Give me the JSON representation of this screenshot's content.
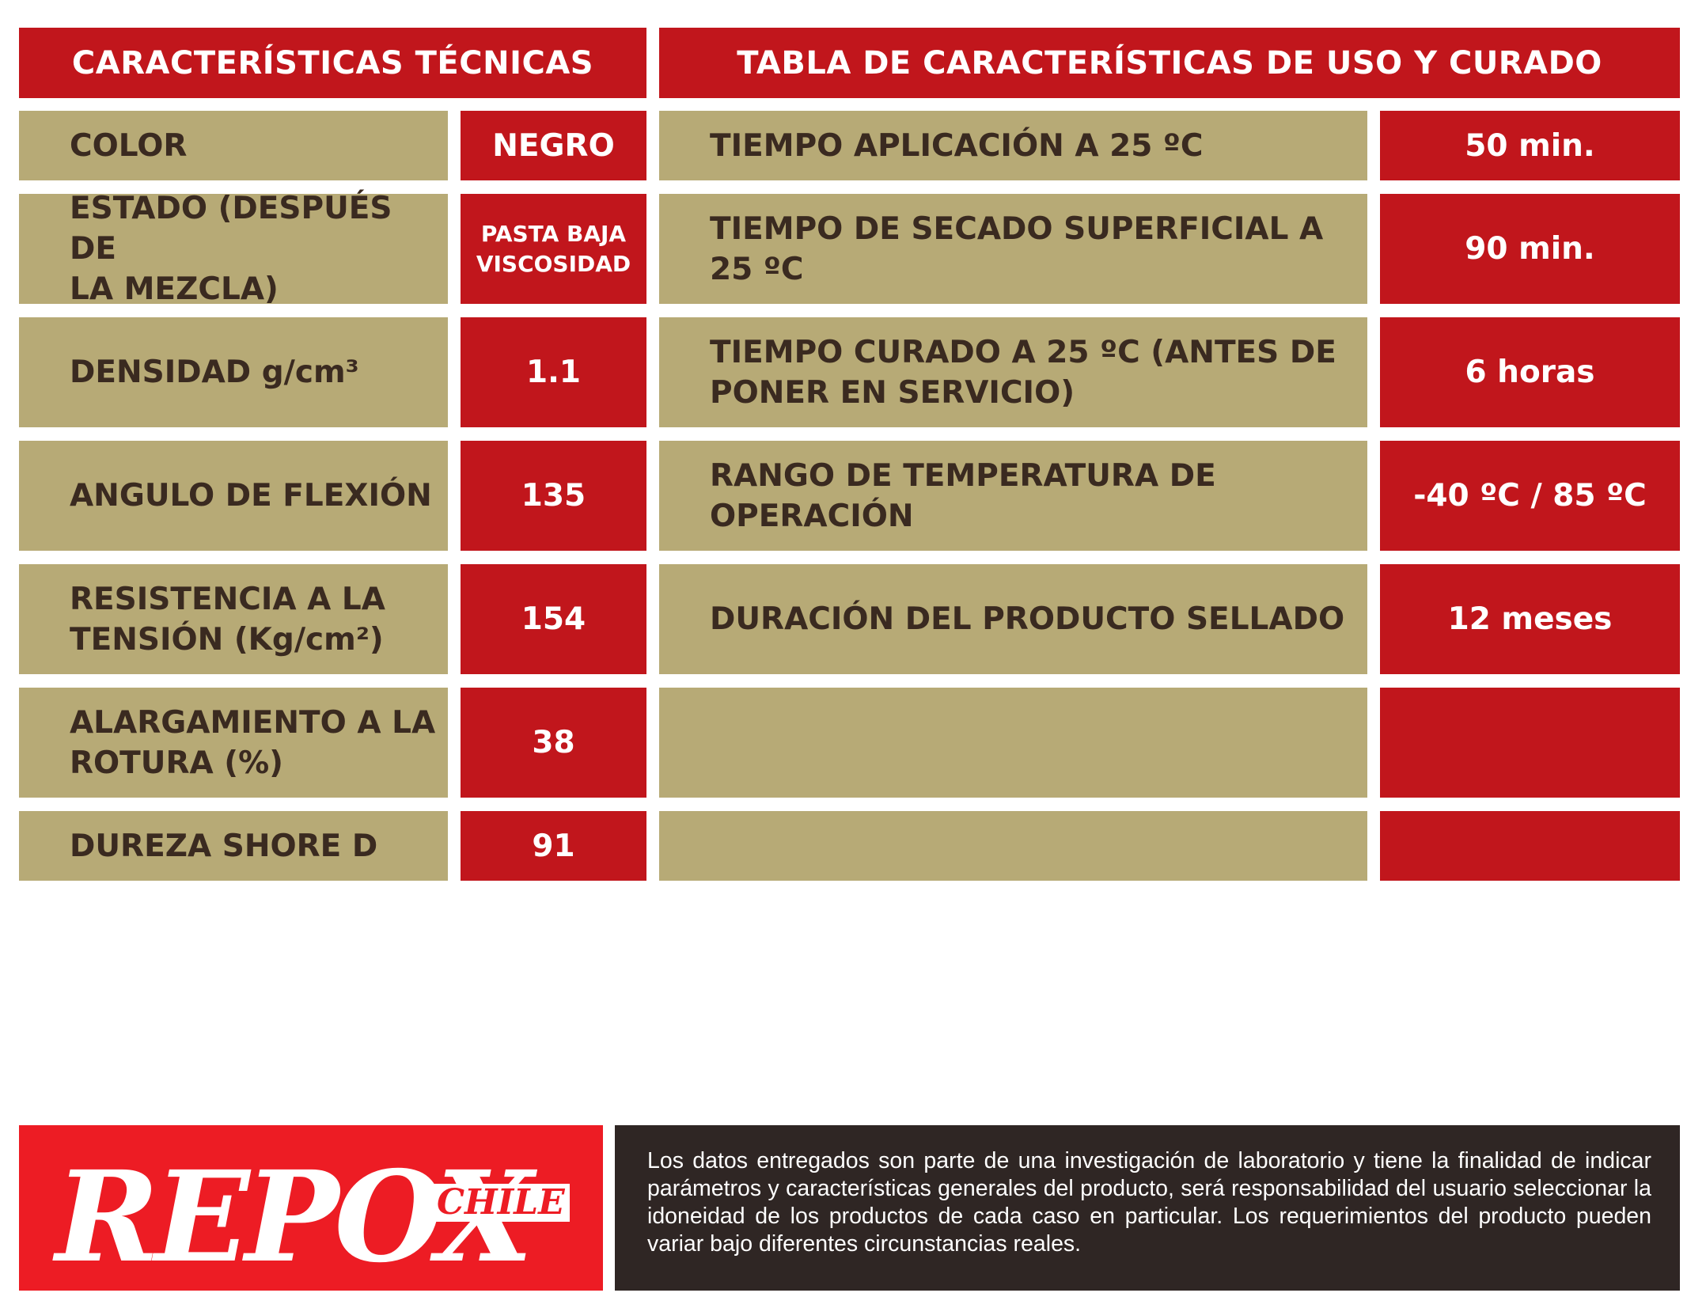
{
  "left": {
    "header": "CARACTERÍSTICAS TÉCNICAS",
    "rows": [
      {
        "label": "COLOR",
        "value": "NEGRO"
      },
      {
        "label": "ESTADO (DESPUÉS DE\nLA MEZCLA)",
        "value": "PASTA BAJA\nVISCOSIDAD"
      },
      {
        "label": "DENSIDAD g/cm³",
        "value": "1.1"
      },
      {
        "label": "ANGULO DE FLEXIÓN",
        "value": "135"
      },
      {
        "label": "RESISTENCIA A LA\nTENSIÓN (Kg/cm²)",
        "value": "154"
      },
      {
        "label": "ALARGAMIENTO A LA\nROTURA (%)",
        "value": "38"
      },
      {
        "label": "DUREZA SHORE D",
        "value": "91"
      }
    ]
  },
  "right": {
    "header": "TABLA DE CARACTERÍSTICAS DE USO Y CURADO",
    "rows": [
      {
        "label": "TIEMPO APLICACIÓN A 25 ºC",
        "value": "50 min."
      },
      {
        "label": "TIEMPO DE SECADO SUPERFICIAL A\n25 ºC",
        "value": "90 min."
      },
      {
        "label": "TIEMPO CURADO A 25 ºC (ANTES DE\nPONER EN SERVICIO)",
        "value": "6 horas"
      },
      {
        "label": "RANGO DE TEMPERATURA DE\nOPERACIÓN",
        "value": "-40 ºC / 85 ºC"
      },
      {
        "label": "DURACIÓN DEL PRODUCTO SELLADO",
        "value": "12 meses"
      },
      {
        "label": "",
        "value": ""
      },
      {
        "label": "",
        "value": ""
      }
    ]
  },
  "logo": {
    "word": "REPOX",
    "sub": "CHILE"
  },
  "disclaimer": "Los datos entregados son parte de una investigación de laboratorio y tiene la finalidad de indicar parámetros y características generales del producto, será responsabilidad del usuario seleccionar la idoneidad de los productos de cada caso en particular. Los requerimientos del producto pueden variar bajo diferentes circunstancias reales.",
  "colors": {
    "red": "#c1161c",
    "tan": "#b7aa76",
    "dark": "#2f2624",
    "logo_red": "#ed1c24"
  }
}
